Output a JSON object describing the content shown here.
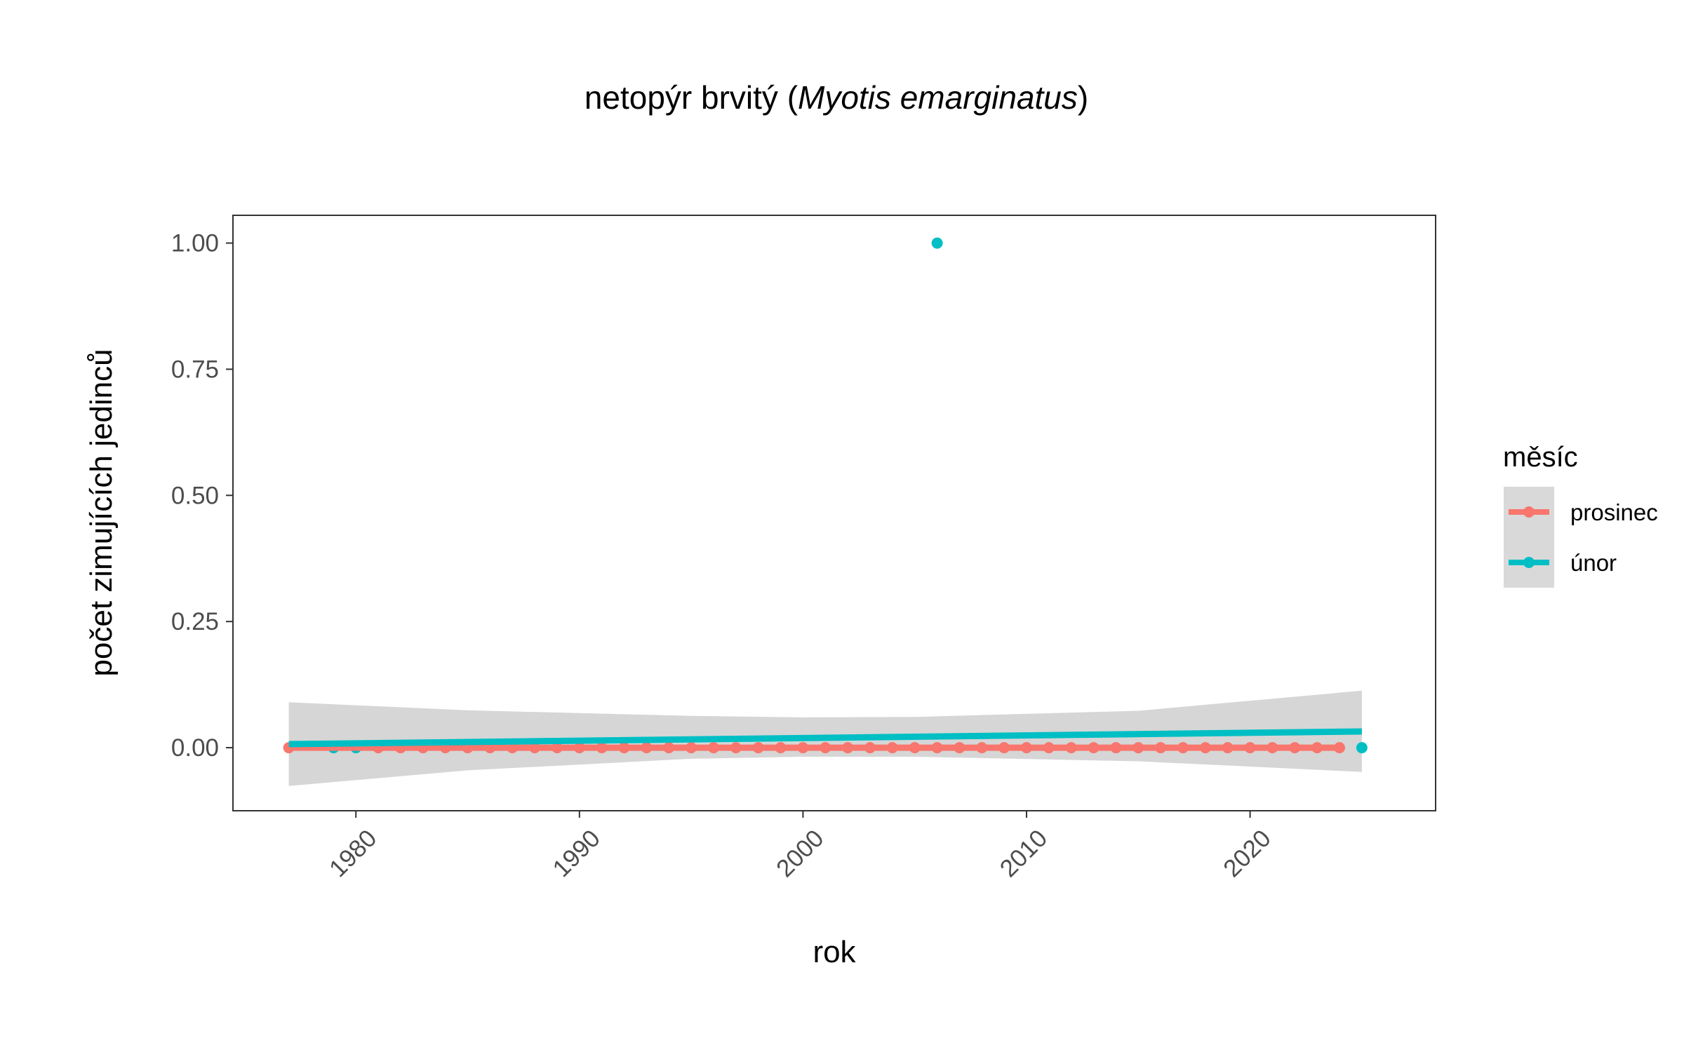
{
  "chart_data": {
    "type": "scatter",
    "title_plain": "netopýr brvitý (",
    "title_italic": "Myotis emarginatus",
    "title_close": ")",
    "xlabel": "rok",
    "ylabel": "počet zimujících jedinců",
    "xlim": [
      1974.5,
      2028.3
    ],
    "ylim": [
      -0.125,
      1.055
    ],
    "x_ticks": [
      1980,
      1990,
      2000,
      2010,
      2020
    ],
    "x_tick_labels": [
      "1980",
      "1990",
      "2000",
      "2010",
      "2020"
    ],
    "y_ticks": [
      0,
      0.25,
      0.5,
      0.75,
      1
    ],
    "y_tick_labels": [
      "0.00",
      "0.25",
      "0.50",
      "0.75",
      "1.00"
    ],
    "grid": false,
    "legend": {
      "title": "měsíc",
      "placement": "right",
      "entries": [
        "prosinec",
        "únor"
      ]
    },
    "series": [
      {
        "name": "prosinec",
        "color": "#F8766D",
        "x": [
          1977,
          1981,
          1982,
          1983,
          1984,
          1985,
          1986,
          1987,
          1988,
          1989,
          1990,
          1991,
          1992,
          1993,
          1994,
          1995,
          1996,
          1997,
          1998,
          1999,
          2000,
          2001,
          2002,
          2003,
          2004,
          2005,
          2006,
          2007,
          2008,
          2009,
          2010,
          2011,
          2012,
          2013,
          2014,
          2015,
          2016,
          2017,
          2018,
          2019,
          2020,
          2021,
          2022,
          2023,
          2024
        ],
        "y": [
          0,
          0,
          0,
          0,
          0,
          0,
          0,
          0,
          0,
          0,
          0,
          0,
          0,
          0,
          0,
          0,
          0,
          0,
          0,
          0,
          0,
          0,
          0,
          0,
          0,
          0,
          0,
          0,
          0,
          0,
          0,
          0,
          0,
          0,
          0,
          0,
          0,
          0,
          0,
          0,
          0,
          0,
          0,
          0,
          0
        ],
        "trend": {
          "x": [
            1977,
            2024
          ],
          "y": [
            0,
            0
          ]
        },
        "ci": {
          "x": [
            1977,
            2024
          ],
          "lower": [
            0,
            0
          ],
          "upper": [
            0,
            0
          ]
        }
      },
      {
        "name": "únor",
        "color": "#00BFC4",
        "x": [
          1979,
          1980,
          2006,
          2025
        ],
        "y": [
          0,
          0,
          1,
          0
        ],
        "trend": {
          "x": [
            1977,
            2025
          ],
          "y": [
            0.007,
            0.032
          ]
        },
        "ci": {
          "x": [
            1977,
            1985,
            1995,
            2000,
            2005,
            2015,
            2025
          ],
          "lower": [
            -0.076,
            -0.045,
            -0.022,
            -0.018,
            -0.018,
            -0.027,
            -0.048
          ],
          "upper": [
            0.09,
            0.074,
            0.063,
            0.06,
            0.061,
            0.073,
            0.113
          ]
        }
      }
    ]
  }
}
